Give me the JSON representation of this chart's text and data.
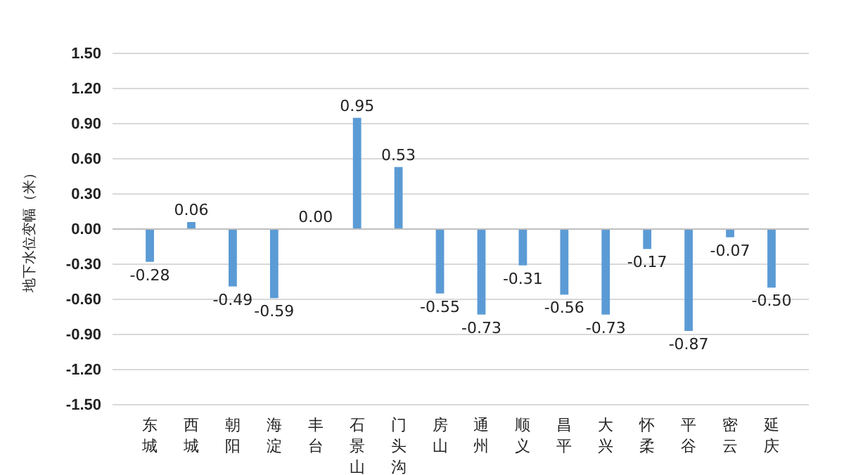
{
  "chart_data": {
    "type": "bar",
    "ylabel": "地下水位变幅（米）",
    "categories": [
      "东城",
      "西城",
      "朝阳",
      "海淀",
      "丰台",
      "石景山",
      "门头沟",
      "房山",
      "通州",
      "顺义",
      "昌平",
      "大兴",
      "怀柔",
      "平谷",
      "密云",
      "延庆"
    ],
    "values": [
      -0.28,
      0.06,
      -0.49,
      -0.59,
      0,
      0.95,
      0.53,
      -0.55,
      -0.73,
      -0.31,
      -0.56,
      -0.73,
      -0.17,
      -0.87,
      -0.07,
      -0.5
    ],
    "value_labels": [
      "-0.28",
      "0.06",
      "-0.49",
      "-0.59",
      "0.00",
      "0.95",
      "0.53",
      "-0.55",
      "-0.73",
      "-0.31",
      "-0.56",
      "-0.73",
      "-0.17",
      "-0.87",
      "-0.07",
      "-0.50"
    ],
    "color": "#5b9bd5",
    "ylim": [
      -1.5,
      1.5
    ],
    "yticks": [
      {
        "value": -1.5,
        "label": "-1.50"
      },
      {
        "value": -1.2,
        "label": "-1.20"
      },
      {
        "value": -0.9,
        "label": "-0.90"
      },
      {
        "value": -0.6,
        "label": "-0.60"
      },
      {
        "value": -0.3,
        "label": "-0.30"
      },
      {
        "value": 0,
        "label": "0.00"
      },
      {
        "value": 0.3,
        "label": "0.30"
      },
      {
        "value": 0.6,
        "label": "0.60"
      },
      {
        "value": 0.9,
        "label": "0.90"
      },
      {
        "value": 1.2,
        "label": "1.20"
      },
      {
        "value": 1.5,
        "label": "1.50"
      }
    ],
    "grid": "y"
  }
}
